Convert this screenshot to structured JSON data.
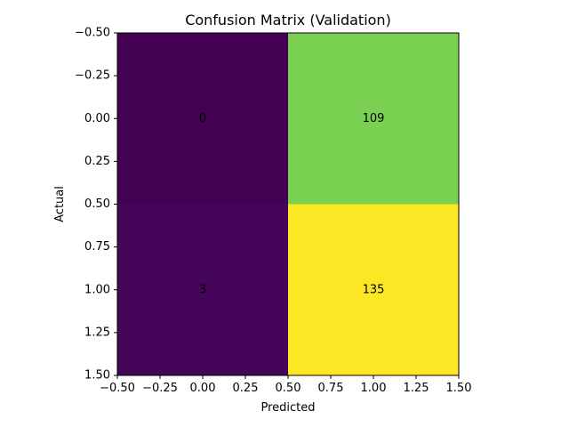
{
  "chart_data": {
    "type": "heatmap",
    "title": "Confusion Matrix (Validation)",
    "xlabel": "Predicted",
    "ylabel": "Actual",
    "xlim": [
      -0.5,
      1.5
    ],
    "ylim": [
      1.5,
      -0.5
    ],
    "y_axis_inverted": true,
    "xticks": [
      "−0.50",
      "−0.25",
      "0.00",
      "0.25",
      "0.50",
      "0.75",
      "1.00",
      "1.25",
      "1.50"
    ],
    "yticks": [
      "−0.50",
      "−0.25",
      "0.00",
      "0.25",
      "0.50",
      "0.75",
      "1.00",
      "1.25",
      "1.50"
    ],
    "colormap": "viridis",
    "matrix": [
      [
        0,
        109
      ],
      [
        3,
        135
      ]
    ],
    "cells": [
      {
        "row": 0,
        "col": 0,
        "value": 0,
        "label": "0",
        "color": "#440154"
      },
      {
        "row": 0,
        "col": 1,
        "value": 109,
        "label": "109",
        "color": "#7ad151"
      },
      {
        "row": 1,
        "col": 0,
        "value": 3,
        "label": "3",
        "color": "#450559"
      },
      {
        "row": 1,
        "col": 1,
        "value": 135,
        "label": "135",
        "color": "#fde725"
      }
    ],
    "grid": false,
    "legend": false
  }
}
